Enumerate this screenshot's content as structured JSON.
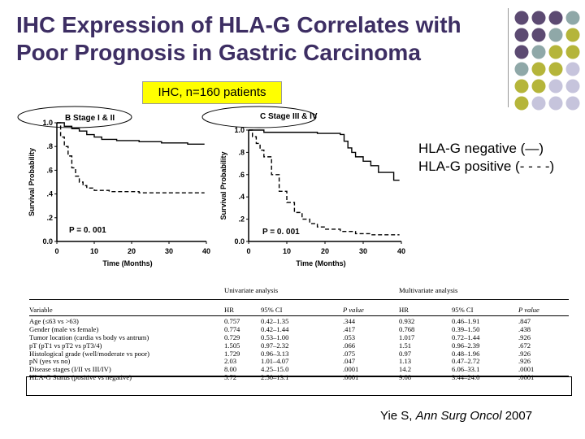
{
  "slide": {
    "title_line1": "IHC Expression of HLA-G Correlates with",
    "title_line2": "Poor Prognosis in Gastric Carcinoma",
    "ihc_label": "IHC, n=160 patients",
    "legend_negative": "HLA-G negative (—)",
    "legend_positive": "HLA-G positive (- - - -)",
    "citation_prefix": "Yie S, ",
    "citation_journal": "Ann Surg Oncol",
    "citation_year": " 2007",
    "deco_colors": {
      "purple": "#5c4a72",
      "teal": "#8fa8a8",
      "olive": "#b5b53a",
      "lavender": "#c6c4dc"
    }
  },
  "chart_data": [
    {
      "type": "line",
      "panel_label": "B Stage I & II",
      "ylabel": "Survival Probability",
      "xlabel": "Time (Months)",
      "xticks": [
        "0",
        "10",
        "20",
        "30",
        "40"
      ],
      "yticks": [
        "0.0",
        ".2",
        ".4",
        ".6",
        ".8",
        "1.0"
      ],
      "xlim": [
        0,
        40
      ],
      "ylim": [
        0,
        1
      ],
      "p_value": "P = 0. 001",
      "series": [
        {
          "style": "solid",
          "x": [
            0,
            2,
            4,
            6,
            8,
            10,
            12,
            16,
            22,
            26,
            28,
            32,
            35,
            38
          ],
          "y": [
            1.0,
            0.97,
            0.95,
            0.93,
            0.9,
            0.88,
            0.86,
            0.85,
            0.84,
            0.84,
            0.83,
            0.83,
            0.82,
            0.82
          ]
        },
        {
          "style": "dashed",
          "x": [
            0,
            1,
            2,
            3,
            4,
            5,
            6,
            7,
            8,
            10,
            14,
            18,
            22,
            28,
            32,
            38
          ],
          "y": [
            1.0,
            0.88,
            0.8,
            0.72,
            0.62,
            0.55,
            0.5,
            0.47,
            0.45,
            0.43,
            0.42,
            0.42,
            0.41,
            0.41,
            0.41,
            0.41
          ]
        }
      ]
    },
    {
      "type": "line",
      "panel_label": "C Stage III & IV",
      "ylabel": "Survival Probability",
      "xlabel": "Time (Months)",
      "xticks": [
        "0",
        "10",
        "20",
        "30",
        "40"
      ],
      "yticks": [
        "0.0",
        ".2",
        ".4",
        ".6",
        ".8",
        "1.0"
      ],
      "xlim": [
        0,
        40
      ],
      "ylim": [
        0,
        1
      ],
      "p_value": "P = 0. 001",
      "series": [
        {
          "style": "solid",
          "x": [
            0,
            2,
            4,
            6,
            10,
            14,
            18,
            22,
            24,
            25,
            26,
            27,
            28,
            30,
            32,
            34,
            38
          ],
          "y": [
            1.0,
            1.0,
            0.98,
            0.98,
            0.98,
            0.98,
            0.97,
            0.97,
            0.96,
            0.9,
            0.84,
            0.8,
            0.76,
            0.72,
            0.68,
            0.62,
            0.55
          ]
        },
        {
          "style": "dashed",
          "x": [
            0,
            1,
            2,
            3,
            4,
            6,
            8,
            10,
            12,
            14,
            16,
            18,
            20,
            24,
            28,
            32,
            38
          ],
          "y": [
            1.0,
            0.94,
            0.88,
            0.82,
            0.76,
            0.6,
            0.45,
            0.35,
            0.26,
            0.2,
            0.16,
            0.13,
            0.11,
            0.09,
            0.07,
            0.06,
            0.06
          ]
        }
      ]
    }
  ],
  "table": {
    "univariate_header": "Univariate analysis",
    "multivariate_header": "Multivariate analysis",
    "columns": [
      "Variable",
      "HR",
      "95% CI",
      "P value",
      "HR",
      "95% CI",
      "P value"
    ],
    "rows": [
      [
        "Age (≤63 vs >63)",
        "0.757",
        "0.42–1.35",
        ".344",
        "0.932",
        "0.46–1.91",
        ".847"
      ],
      [
        "Gender (male vs female)",
        "0.774",
        "0.42–1.44",
        ".417",
        "0.768",
        "0.39–1.50",
        ".438"
      ],
      [
        "Tumor location (cardia vs body vs antrum)",
        "0.729",
        "0.53–1.00",
        ".053",
        "1.017",
        "0.72–1.44",
        ".926"
      ],
      [
        "pT (pT1 vs pT2 vs pT3/4)",
        "1.505",
        "0.97–2.32",
        ".066",
        "1.51",
        "0.96–2.39",
        ".672"
      ],
      [
        "Histological grade (well/moderate vs poor)",
        "1.729",
        "0.96–3.13",
        ".075",
        "0.97",
        "0.48–1.96",
        ".926"
      ],
      [
        "pN (yes vs no)",
        "2.03",
        "1.01–4.07",
        ".047",
        "1.13",
        "0.47–2.72",
        ".926"
      ],
      [
        "Disease stages (I/II vs III/IV)",
        "8.00",
        "4.25–15.0",
        ".0001",
        "14.2",
        "6.06–33.1",
        ".0001"
      ],
      [
        "HLA-G Status (positive vs negative)",
        "5.72",
        "2.50–13.1",
        ".0001",
        "9.08",
        "3.44–24.0",
        ".0001"
      ]
    ]
  }
}
